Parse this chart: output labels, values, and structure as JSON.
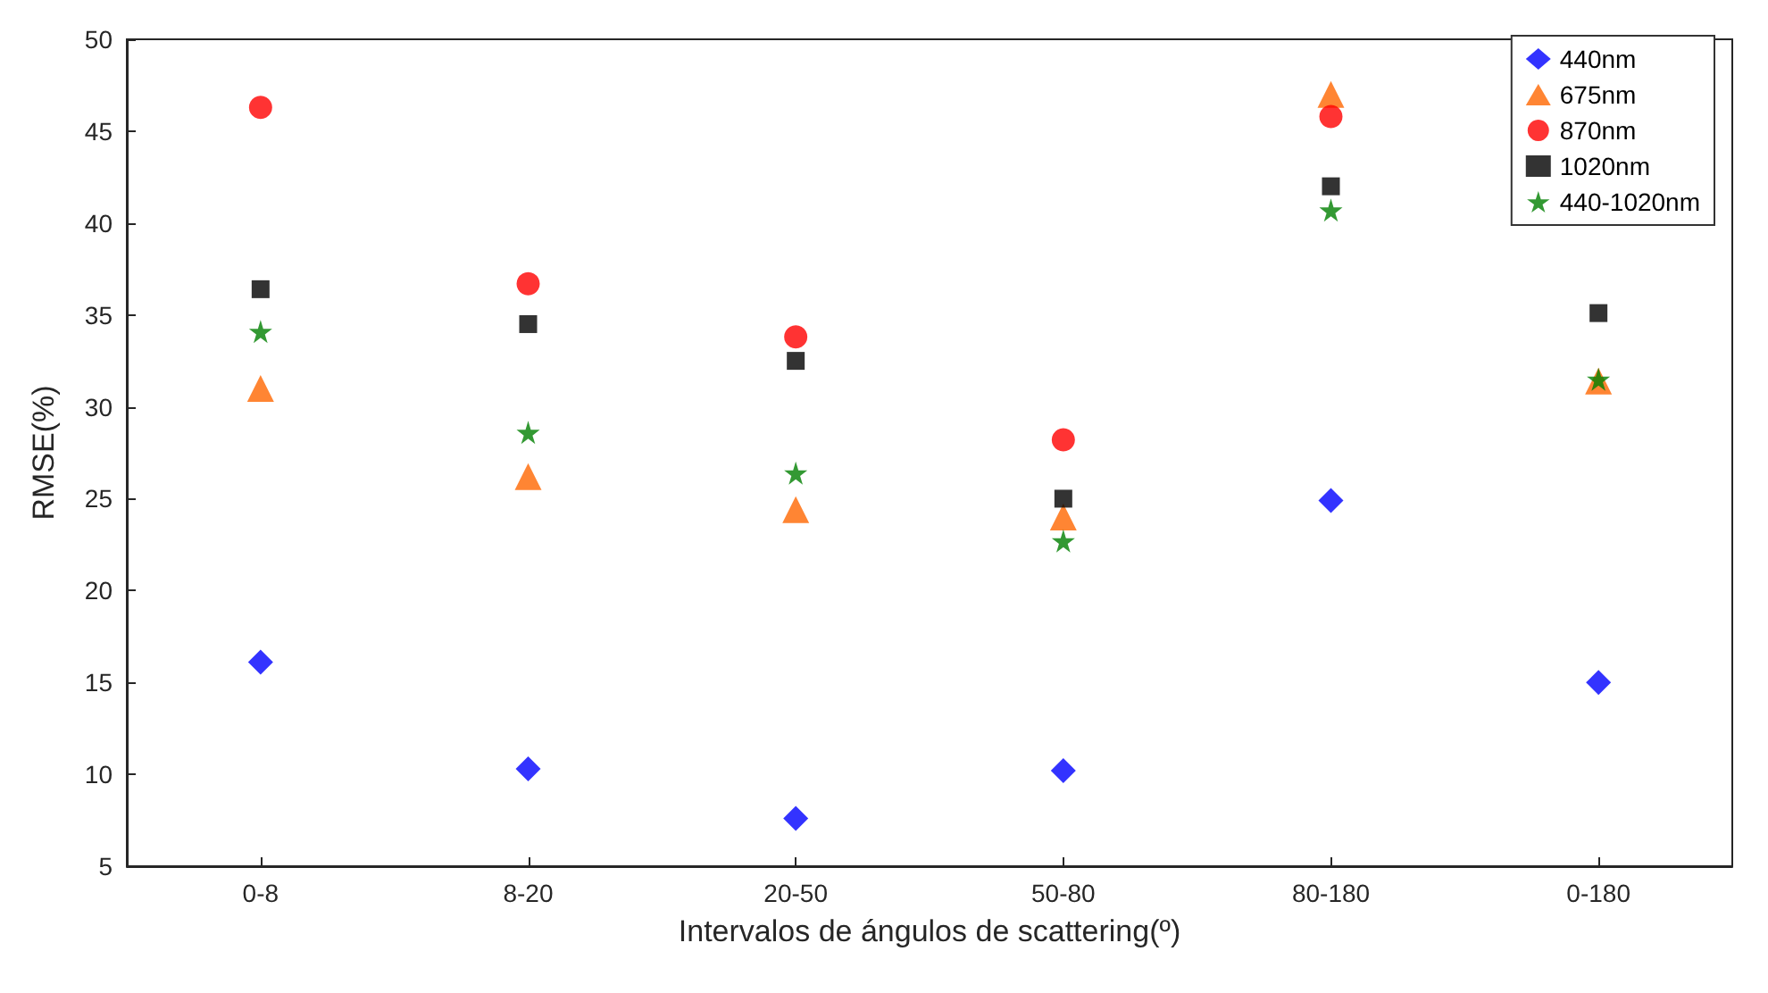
{
  "chart_data": {
    "type": "scatter",
    "xlabel": "Intervalos de ángulos de scattering(º)",
    "ylabel": "RMSE(%)",
    "categories": [
      "0-8",
      "8-20",
      "20-50",
      "50-80",
      "80-180",
      "0-180"
    ],
    "ylim": [
      5,
      50
    ],
    "yticks": [
      5,
      10,
      15,
      20,
      25,
      30,
      35,
      40,
      45,
      50
    ],
    "grid": false,
    "legend": "top right",
    "series": [
      {
        "name": "440nm",
        "color": "#0000ff",
        "marker": "diamond",
        "values": [
          16.1,
          10.3,
          7.6,
          10.2,
          24.9,
          15.0
        ]
      },
      {
        "name": "675nm",
        "color": "#ff6600",
        "marker": "triangle",
        "values": [
          31.0,
          26.2,
          24.4,
          24.0,
          47.0,
          31.4
        ]
      },
      {
        "name": "870nm",
        "color": "#ff0000",
        "marker": "circle",
        "values": [
          46.3,
          36.7,
          33.8,
          28.2,
          45.8,
          null
        ]
      },
      {
        "name": "1020nm",
        "color": "#000000",
        "marker": "square",
        "values": [
          36.4,
          34.5,
          32.5,
          25.0,
          42.0,
          35.1
        ]
      },
      {
        "name": "440-1020nm",
        "color": "#008000",
        "marker": "star",
        "values": [
          34.1,
          28.6,
          26.4,
          22.7,
          40.7,
          31.5
        ]
      }
    ]
  }
}
